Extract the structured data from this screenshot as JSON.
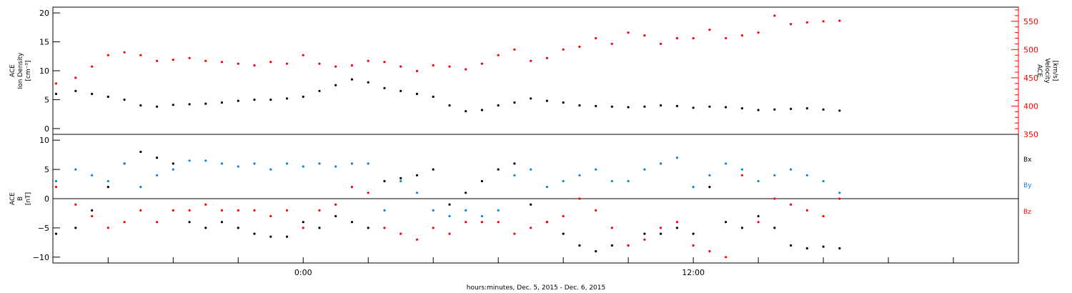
{
  "colors": {
    "black_series": "#000000",
    "red_series": "#ff0000",
    "blue_series": "#0a84e0",
    "axis": "#000000",
    "velocity_axis": "#ff0000"
  },
  "xlabel": "hours:minutes, Dec.  5, 2015 - Dec.  6, 2015",
  "chart_data": [
    {
      "type": "scatter",
      "panel": "top",
      "left_axis": {
        "label_lines": [
          "ACE",
          "Ion Density",
          "[cm⁻³]"
        ],
        "ylim": [
          -1,
          21
        ],
        "ticks": [
          0,
          5,
          10,
          15,
          20
        ],
        "tick_labels": [
          "0",
          "5",
          "10",
          "15",
          "20"
        ]
      },
      "right_axis": {
        "label_lines": [
          "ACE",
          "Velocity",
          "[km/s]"
        ],
        "ylim": [
          350,
          575
        ],
        "ticks": [
          350,
          400,
          450,
          500,
          550
        ],
        "tick_labels": [
          "350",
          "400",
          "450",
          "500",
          "550"
        ]
      },
      "x_axis": {
        "unit": "hours from 00:00 Dec. 5, 2015",
        "xlim": [
          -7.7,
          22
        ]
      },
      "series": [
        {
          "color_key": "black_series",
          "axis": "left",
          "x": [
            -7.6,
            -7,
            -6.5,
            -6,
            -5.5,
            -5,
            -4.5,
            -4,
            -3.5,
            -3,
            -2.5,
            -2,
            -1.5,
            -1,
            -0.5,
            0,
            0.5,
            1,
            1.5,
            2,
            2.5,
            3,
            3.5,
            4,
            4.5,
            5,
            5.5,
            6,
            6.5,
            7,
            7.5,
            8,
            8.5,
            9,
            9.5,
            10,
            10.5,
            11,
            11.5,
            12,
            12.5,
            13,
            13.5,
            14,
            14.5,
            15,
            15.5,
            16,
            16.5
          ],
          "y": [
            6,
            6.5,
            6,
            5.5,
            5,
            4,
            3.8,
            4.1,
            4.2,
            4.3,
            4.5,
            4.8,
            5,
            5,
            5.2,
            5.5,
            6.5,
            7.5,
            8.5,
            8,
            7,
            6.5,
            6,
            5.5,
            4,
            3,
            3.2,
            4,
            4.5,
            5.2,
            4.8,
            4.5,
            4,
            3.9,
            3.8,
            3.7,
            3.8,
            4,
            3.9,
            3.6,
            3.8,
            3.7,
            3.5,
            3.2,
            3.3,
            3.4,
            3.5,
            3.3,
            3.1
          ]
        },
        {
          "color_key": "red_series",
          "axis": "right",
          "x": [
            -7.6,
            -7,
            -6.5,
            -6,
            -5.5,
            -5,
            -4.5,
            -4,
            -3.5,
            -3,
            -2.5,
            -2,
            -1.5,
            -1,
            -0.5,
            0,
            0.5,
            1,
            1.5,
            2,
            2.5,
            3,
            3.5,
            4,
            4.5,
            5,
            5.5,
            6,
            6.5,
            7,
            7.5,
            8,
            8.5,
            9,
            9.5,
            10,
            10.5,
            11,
            11.5,
            12,
            12.5,
            13,
            13.5,
            14,
            14.5,
            15,
            15.5,
            16,
            16.5
          ],
          "y": [
            440,
            450,
            470,
            490,
            495,
            490,
            480,
            482,
            485,
            480,
            478,
            475,
            472,
            478,
            475,
            490,
            475,
            470,
            472,
            480,
            478,
            470,
            462,
            472,
            470,
            465,
            475,
            490,
            500,
            480,
            485,
            500,
            505,
            520,
            510,
            530,
            525,
            510,
            520,
            520,
            535,
            520,
            525,
            530,
            560,
            545,
            548,
            550,
            551
          ]
        }
      ]
    },
    {
      "type": "scatter",
      "panel": "bottom",
      "axis": {
        "label_lines": [
          "ACE",
          "B",
          "[nT]"
        ],
        "ylim": [
          -11,
          11
        ],
        "ticks": [
          -10,
          -5,
          0,
          5,
          10
        ],
        "tick_labels": [
          "−10",
          "−5",
          "0",
          "5",
          "10"
        ]
      },
      "x_axis": {
        "xlim": [
          -7.7,
          22
        ],
        "ticks": [
          -6,
          -4,
          -2,
          0,
          2,
          4,
          6,
          8,
          10,
          12,
          14,
          16,
          18,
          20
        ],
        "labeled_ticks": {
          "0": "0:00",
          "12": "12:00"
        }
      },
      "legend": {
        "placement": "right",
        "entries": [
          "Bx",
          "By",
          "Bz"
        ]
      },
      "series": [
        {
          "name": "Bx",
          "color_key": "black_series",
          "x": [
            -7.6,
            -7,
            -6.5,
            -6,
            -5.5,
            -5,
            -4.5,
            -4,
            -3.5,
            -3,
            -2.5,
            -2,
            -1.5,
            -1,
            -0.5,
            0,
            0.5,
            1,
            1.5,
            2,
            2.5,
            3,
            3.5,
            4,
            4.5,
            5,
            5.5,
            6,
            6.5,
            7,
            7.5,
            8,
            8.5,
            9,
            9.5,
            10,
            10.5,
            11,
            11.5,
            12,
            12.5,
            13,
            13.5,
            14,
            14.5,
            15,
            15.5,
            16,
            16.5
          ],
          "y": [
            -6,
            -5,
            -2,
            2,
            6,
            8,
            7,
            6,
            -4,
            -5,
            -4,
            -5,
            -6,
            -6.5,
            -6.5,
            -4,
            -5,
            -3,
            -4,
            -5,
            3,
            3.5,
            4,
            5,
            -1,
            1,
            3,
            5,
            6,
            -1,
            -4,
            -6,
            -8,
            -9,
            -8,
            -8,
            -6,
            -6,
            -5,
            -6,
            2,
            -4,
            -5,
            -3,
            -5,
            -8,
            -8.5,
            -8.2,
            -8.5
          ]
        },
        {
          "name": "By",
          "color_key": "blue_series",
          "x": [
            -7.6,
            -7,
            -6.5,
            -6,
            -5.5,
            -5,
            -4.5,
            -4,
            -3.5,
            -3,
            -2.5,
            -2,
            -1.5,
            -1,
            -0.5,
            0,
            0.5,
            1,
            1.5,
            2,
            2.5,
            3,
            3.5,
            4,
            4.5,
            5,
            5.5,
            6,
            6.5,
            7,
            7.5,
            8,
            8.5,
            9,
            9.5,
            10,
            10.5,
            11,
            11.5,
            12,
            12.5,
            13,
            13.5,
            14,
            14.5,
            15,
            15.5,
            16,
            16.5
          ],
          "y": [
            3,
            5,
            4,
            3,
            6,
            2,
            4,
            5,
            6.5,
            6.5,
            6,
            5.5,
            6,
            5,
            6,
            5.5,
            6,
            5.5,
            6,
            6,
            -2,
            3,
            1,
            -2,
            -3,
            -2,
            -3,
            -2,
            4,
            5,
            2,
            3,
            4,
            5,
            3,
            3,
            5,
            6,
            7,
            2,
            4,
            6,
            5,
            3,
            4,
            5,
            4,
            3,
            1
          ]
        },
        {
          "name": "Bz",
          "color_key": "red_series",
          "x": [
            -7.6,
            -7,
            -6.5,
            -6,
            -5.5,
            -5,
            -4.5,
            -4,
            -3.5,
            -3,
            -2.5,
            -2,
            -1.5,
            -1,
            -0.5,
            0,
            0.5,
            1,
            1.5,
            2,
            2.5,
            3,
            3.5,
            4,
            4.5,
            5,
            5.5,
            6,
            6.5,
            7,
            7.5,
            8,
            8.5,
            9,
            9.5,
            10,
            10.5,
            11,
            11.5,
            12,
            12.5,
            13,
            13.5,
            14,
            14.5,
            15,
            15.5,
            16,
            16.5
          ],
          "y": [
            2,
            -1,
            -3,
            -5,
            -4,
            -2,
            -4,
            -2,
            -2,
            -1,
            -2,
            -2,
            -2,
            -3,
            -2,
            -5,
            -2,
            -1,
            2,
            1,
            -5,
            -6,
            -7,
            -5,
            -6,
            -4,
            -4,
            -4,
            -6,
            -5,
            -4,
            -3,
            0,
            -2,
            -5,
            -8,
            -7,
            -5,
            -4,
            -8,
            -9,
            -10,
            4,
            -4,
            0,
            -1,
            -2,
            -3,
            0
          ]
        }
      ]
    }
  ]
}
